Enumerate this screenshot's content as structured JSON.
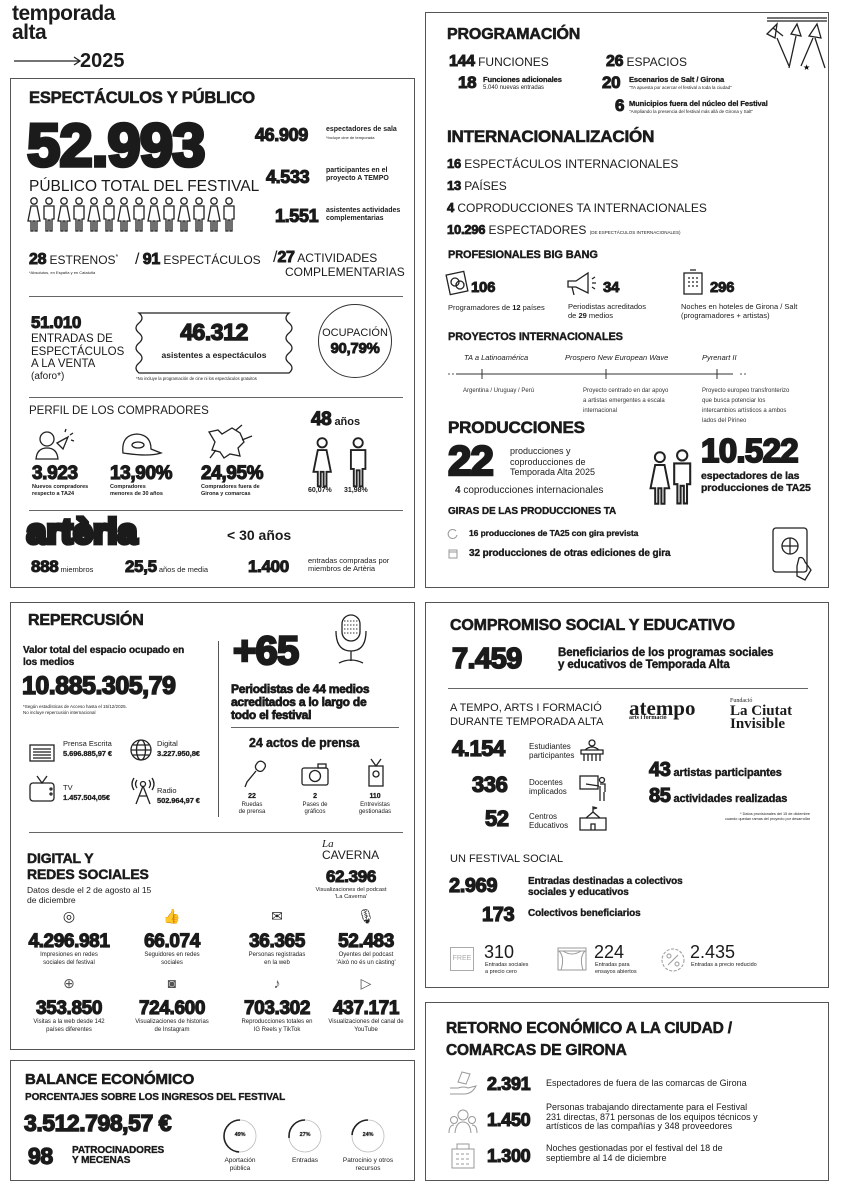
{
  "logo": {
    "line1": "temporada",
    "line2": "alta",
    "year": "2025"
  },
  "espectaculos": {
    "title": "ESPECTÁCULOS Y PÚBLICO",
    "total": "52.993",
    "total_label": "PÚBLICO TOTAL DEL FESTIVAL",
    "sala": {
      "value": "46.909",
      "label": "espectadores de sala",
      "note": "*Incluye cine de temporada"
    },
    "atempo": {
      "value": "4.533",
      "label1": "participantes en el",
      "label2": "proyecto A TEMPO"
    },
    "complementarias": {
      "value": "1.551",
      "label1": "asistentes actividades",
      "label2": "complementarias"
    },
    "estrenos": {
      "value": "28",
      "label": "ESTRENOS",
      "mark": "*",
      "note": "*Absolutos, en España y en Cataluña"
    },
    "espectaculos": {
      "sep": "/",
      "value": "91",
      "label": "ESPECTÁCULOS"
    },
    "actividades": {
      "sep": "/",
      "value": "27",
      "label1": "ACTIVIDADES",
      "label2": "COMPLEMENTARIAS"
    },
    "entradas": {
      "value": "51.010",
      "lines": [
        "ENTRADAS DE",
        "ESPECTÁCULOS",
        "A LA VENTA",
        "(aforo*)"
      ]
    },
    "asistentes": {
      "value": "46.312",
      "label": "asistentes a espectáculos",
      "note": "*No incluye la programación de cine ni los espectáculos gratuitos"
    },
    "ocupacion": {
      "label": "OCUPACIÓN",
      "value": "90,79%"
    },
    "perfil": {
      "title": "PERFIL DE LOS COMPRADORES",
      "items": [
        {
          "value": "3.923",
          "label1": "Nuevos compradores",
          "label2": "respecto a TA24",
          "icon": "person-cursor-icon"
        },
        {
          "value": "13,90%",
          "label1": "Compradores",
          "label2": "menores de 30 años",
          "icon": "cap-icon"
        },
        {
          "value": "24,95%",
          "label1": "Compradores fuera de",
          "label2": "Girona y comarcas",
          "icon": "map-icon"
        }
      ],
      "edad": {
        "value": "48",
        "unit": "años"
      },
      "mujeres": "60,07%",
      "hombres": "31,98%"
    },
    "arteria": {
      "logo": "artèria",
      "age": "< 30 años",
      "miembros": {
        "value": "888",
        "label": "miembros"
      },
      "media": {
        "value": "25,5",
        "label": "años de media"
      },
      "entradas": {
        "value": "1.400",
        "label1": "entradas compradas por",
        "label2": "miembros de Artèria"
      }
    }
  },
  "programacion": {
    "title": "PROGRAMACIÓN",
    "funciones": {
      "value": "144",
      "label": "FUNCIONES"
    },
    "adicionales": {
      "value": "18",
      "label": "Funciones adicionales",
      "sub": "5.040 nuevas entradas"
    },
    "espacios": {
      "value": "26",
      "label": "ESPACIOS"
    },
    "escenarios": {
      "value": "20",
      "label": "Escenarios de Salt / Girona",
      "sub": "\"TA apuesta por acercar el festival a toda la ciudad\""
    },
    "municipios": {
      "value": "6",
      "label": "Municipios fuera del núcleo del Festival",
      "sub": "\"Ampliando la presencia del festival más allá de Girona y Salt\""
    }
  },
  "internacionalizacion": {
    "title": "INTERNACIONALIZACIÓN",
    "items": [
      {
        "value": "16",
        "label": "ESPECTÁCULOS INTERNACIONALES"
      },
      {
        "value": "13",
        "label": "PAÍSES"
      },
      {
        "value": "4",
        "label": "COPRODUCCIONES TA INTERNACIONALES"
      },
      {
        "value": "10.296",
        "label": "ESPECTADORES",
        "note": "(DE ESPECTÁCULOS INTERNACIONALES)"
      }
    ]
  },
  "bigbang": {
    "title": "PROFESIONALES BIG BANG",
    "programadores": {
      "value": "106",
      "label_a": "Programadores de ",
      "bold": "12",
      "label_b": " países"
    },
    "periodistas": {
      "value": "34",
      "label1": "Periodistas acreditados",
      "label2a": "de ",
      "bold": "29",
      "label2b": " medios"
    },
    "noches": {
      "value": "296",
      "label1": "Noches en hoteles de Girona / Salt",
      "label2": "(programadores + artistas)"
    }
  },
  "proyectos": {
    "title": "PROYECTOS INTERNACIONALES",
    "items": [
      {
        "name": "TA a Latinoamérica",
        "desc": [
          "Argentina / Uruguay / Perú"
        ]
      },
      {
        "name": "Prospero New European Wave",
        "desc": [
          "Proyecto centrado en dar apoyo",
          "a artistas emergentes a escala",
          "internacional"
        ]
      },
      {
        "name": "Pyrenart II",
        "desc": [
          "Proyecto europeo transfronterizo",
          "que busca potenciar los",
          "intercambios artísticos a ambos",
          "lados del Pirineo"
        ]
      }
    ]
  },
  "producciones": {
    "title": "PRODUCCIONES",
    "value": "22",
    "lines": [
      "producciones y",
      "coproducciones de",
      "Temporada Alta 2025"
    ],
    "coprod": {
      "value": "4",
      "label": "coproducciones internacionales"
    },
    "espectadores": {
      "value": "10.522",
      "label1": "espectadores de las",
      "label2": "producciones de TA25"
    }
  },
  "giras": {
    "title": "GIRAS DE LAS PRODUCCIONES TA",
    "items": [
      {
        "value": "16",
        "label": "producciones de TA25 con gira prevista"
      },
      {
        "value": "32",
        "label": "producciones de otras ediciones de gira"
      }
    ]
  },
  "repercusion": {
    "title": "REPERCUSIÓN",
    "valor_label1": "Valor total del espacio ocupado en",
    "valor_label2": "los medios",
    "valor": "10.885.305,79",
    "note1": "*Según estadísticas de Acceso hasta el 15/12/2025.",
    "note2": "No incluye repercusión internacional",
    "medios": [
      {
        "label": "Prensa Escrita",
        "value": "5.696.885,97 €"
      },
      {
        "label": "Digital",
        "value": "3.227.950,8€"
      },
      {
        "label": "TV",
        "value": "1.457.504,05€"
      },
      {
        "label": "Radio",
        "value": "502.964,97 €"
      }
    ],
    "periodistas": {
      "value": "+65",
      "lines": [
        "Periodistas de 44 medios",
        "acreditados a lo largo de",
        "todo el festival"
      ]
    },
    "actos": {
      "title": "24 actos de prensa",
      "items": [
        {
          "value": "22",
          "label1": "Ruedas",
          "label2": "de prensa"
        },
        {
          "value": "2",
          "label1": "Pases de",
          "label2": "gráficos"
        },
        {
          "value": "110",
          "label1": "Entrevistas",
          "label2": "gestionadas"
        }
      ]
    }
  },
  "digital": {
    "title1": "DIGITAL Y",
    "title2": "REDES SOCIALES",
    "subtitle1": "Datos desde el 2 de agosto al 15",
    "subtitle2": "de diciembre",
    "caverna": {
      "logo1": "La",
      "logo2": "CAVERNA",
      "value": "62.396",
      "label1": "Visualizaciones del podcast",
      "label2": "'La Caverna'"
    },
    "items": [
      {
        "value": "4.296.981",
        "label1": "Impresiones en redes",
        "label2": "sociales del festival"
      },
      {
        "value": "66.074",
        "label1": "Seguidores en redes",
        "label2": "sociales"
      },
      {
        "value": "36.365",
        "label1": "Personas registradas",
        "label2": "en la web"
      },
      {
        "value": "52.483",
        "label1": "Oyentes del podcast",
        "label2": "'Això no és un càsting'"
      },
      {
        "value": "353.850",
        "label1": "Visitas a la web desde 142",
        "label2": "países diferentes"
      },
      {
        "value": "724.600",
        "label1": "Visualizaciones de historias",
        "label2": "de Instagram"
      },
      {
        "value": "703.302",
        "label1": "Reproducciones totales en",
        "label2": "IG Reels y TikTok"
      },
      {
        "value": "437.171",
        "label1": "Visualizaciones del canal de",
        "label2": "YouTube"
      }
    ]
  },
  "balance": {
    "title": "BALANCE ECONÓMICO",
    "subtitle": "PORCENTAJES SOBRE LOS INGRESOS DEL FESTIVAL",
    "total": "3.512.798,57 €",
    "patrocinadores": {
      "value": "98",
      "label1": "PATROCINADORES",
      "label2": "Y MECENAS"
    },
    "ingresos": [
      {
        "percent": 49,
        "text": "49%",
        "label1": "Aportación",
        "label2": "pública"
      },
      {
        "percent": 27,
        "text": "27%",
        "label1": "Entradas",
        "label2": ""
      },
      {
        "percent": 24,
        "text": "24%",
        "label1": "Patrocinio y otros",
        "label2": "recursos"
      }
    ]
  },
  "compromiso": {
    "title": "COMPROMISO SOCIAL Y EDUCATIVO",
    "value": "7.459",
    "label1": "Beneficiarios de los programas sociales",
    "label2": "y educativos de Temporada Alta",
    "atempo_title1": "A TEMPO, ARTS I FORMACIÓ",
    "atempo_title2": "DURANTE TEMPORADA ALTA",
    "atempo_logo": "atempo",
    "atempo_logo_sub": "arts i formació",
    "ciutat_logo_pre": "Fundació",
    "ciutat_logo1": "La Ciutat",
    "ciutat_logo2": "Invisible",
    "items": [
      {
        "value": "4.154",
        "label1": "Estudiantes",
        "label2": "participantes"
      },
      {
        "value": "336",
        "label1": "Docentes",
        "label2": "implicados"
      },
      {
        "value": "52",
        "label1": "Centros",
        "label2": "Educativos"
      }
    ],
    "artistas": {
      "value": "43",
      "label": "artistas participantes"
    },
    "actividades": {
      "value": "85",
      "label": "actividades realizadas"
    },
    "note1": "* Datos provisionales del 15 de diciembre",
    "note2": "cuando quedan ramas del proyecto por desarrollar",
    "social_title": "UN FESTIVAL SOCIAL",
    "entradas": {
      "value": "2.969",
      "label1": "Entradas destinadas a colectivos",
      "label2": "sociales y educativos"
    },
    "colectivos": {
      "value": "173",
      "label": "Colectivos beneficiarios"
    },
    "free_icon": "FREE",
    "bottom": [
      {
        "value": "310",
        "label1": "Entradas sociales",
        "label2": "a precio cero"
      },
      {
        "value": "224",
        "label1": "Entradas para",
        "label2": "ensayos abiertos"
      },
      {
        "value": "2.435",
        "label1": "Entradas a precio reducido",
        "label2": ""
      }
    ]
  },
  "retorno": {
    "title1": "RETORNO ECONÓMICO A LA CIUDAD /",
    "title2": "COMARCAS DE GIRONA",
    "items": [
      {
        "value": "2.391",
        "lines": [
          "Espectadores de fuera de las comarcas de Girona"
        ]
      },
      {
        "value": "1.450",
        "lines": [
          "Personas trabajando directamente para el Festival",
          "231 directas, 871 personas de los equipos técnicos y",
          "artísticos de las compañías y 348 proveedores"
        ]
      },
      {
        "value": "1.300",
        "lines": [
          "Noches gestionadas por el festival del 18 de",
          "septiembre al 14 de diciembre"
        ]
      }
    ]
  }
}
